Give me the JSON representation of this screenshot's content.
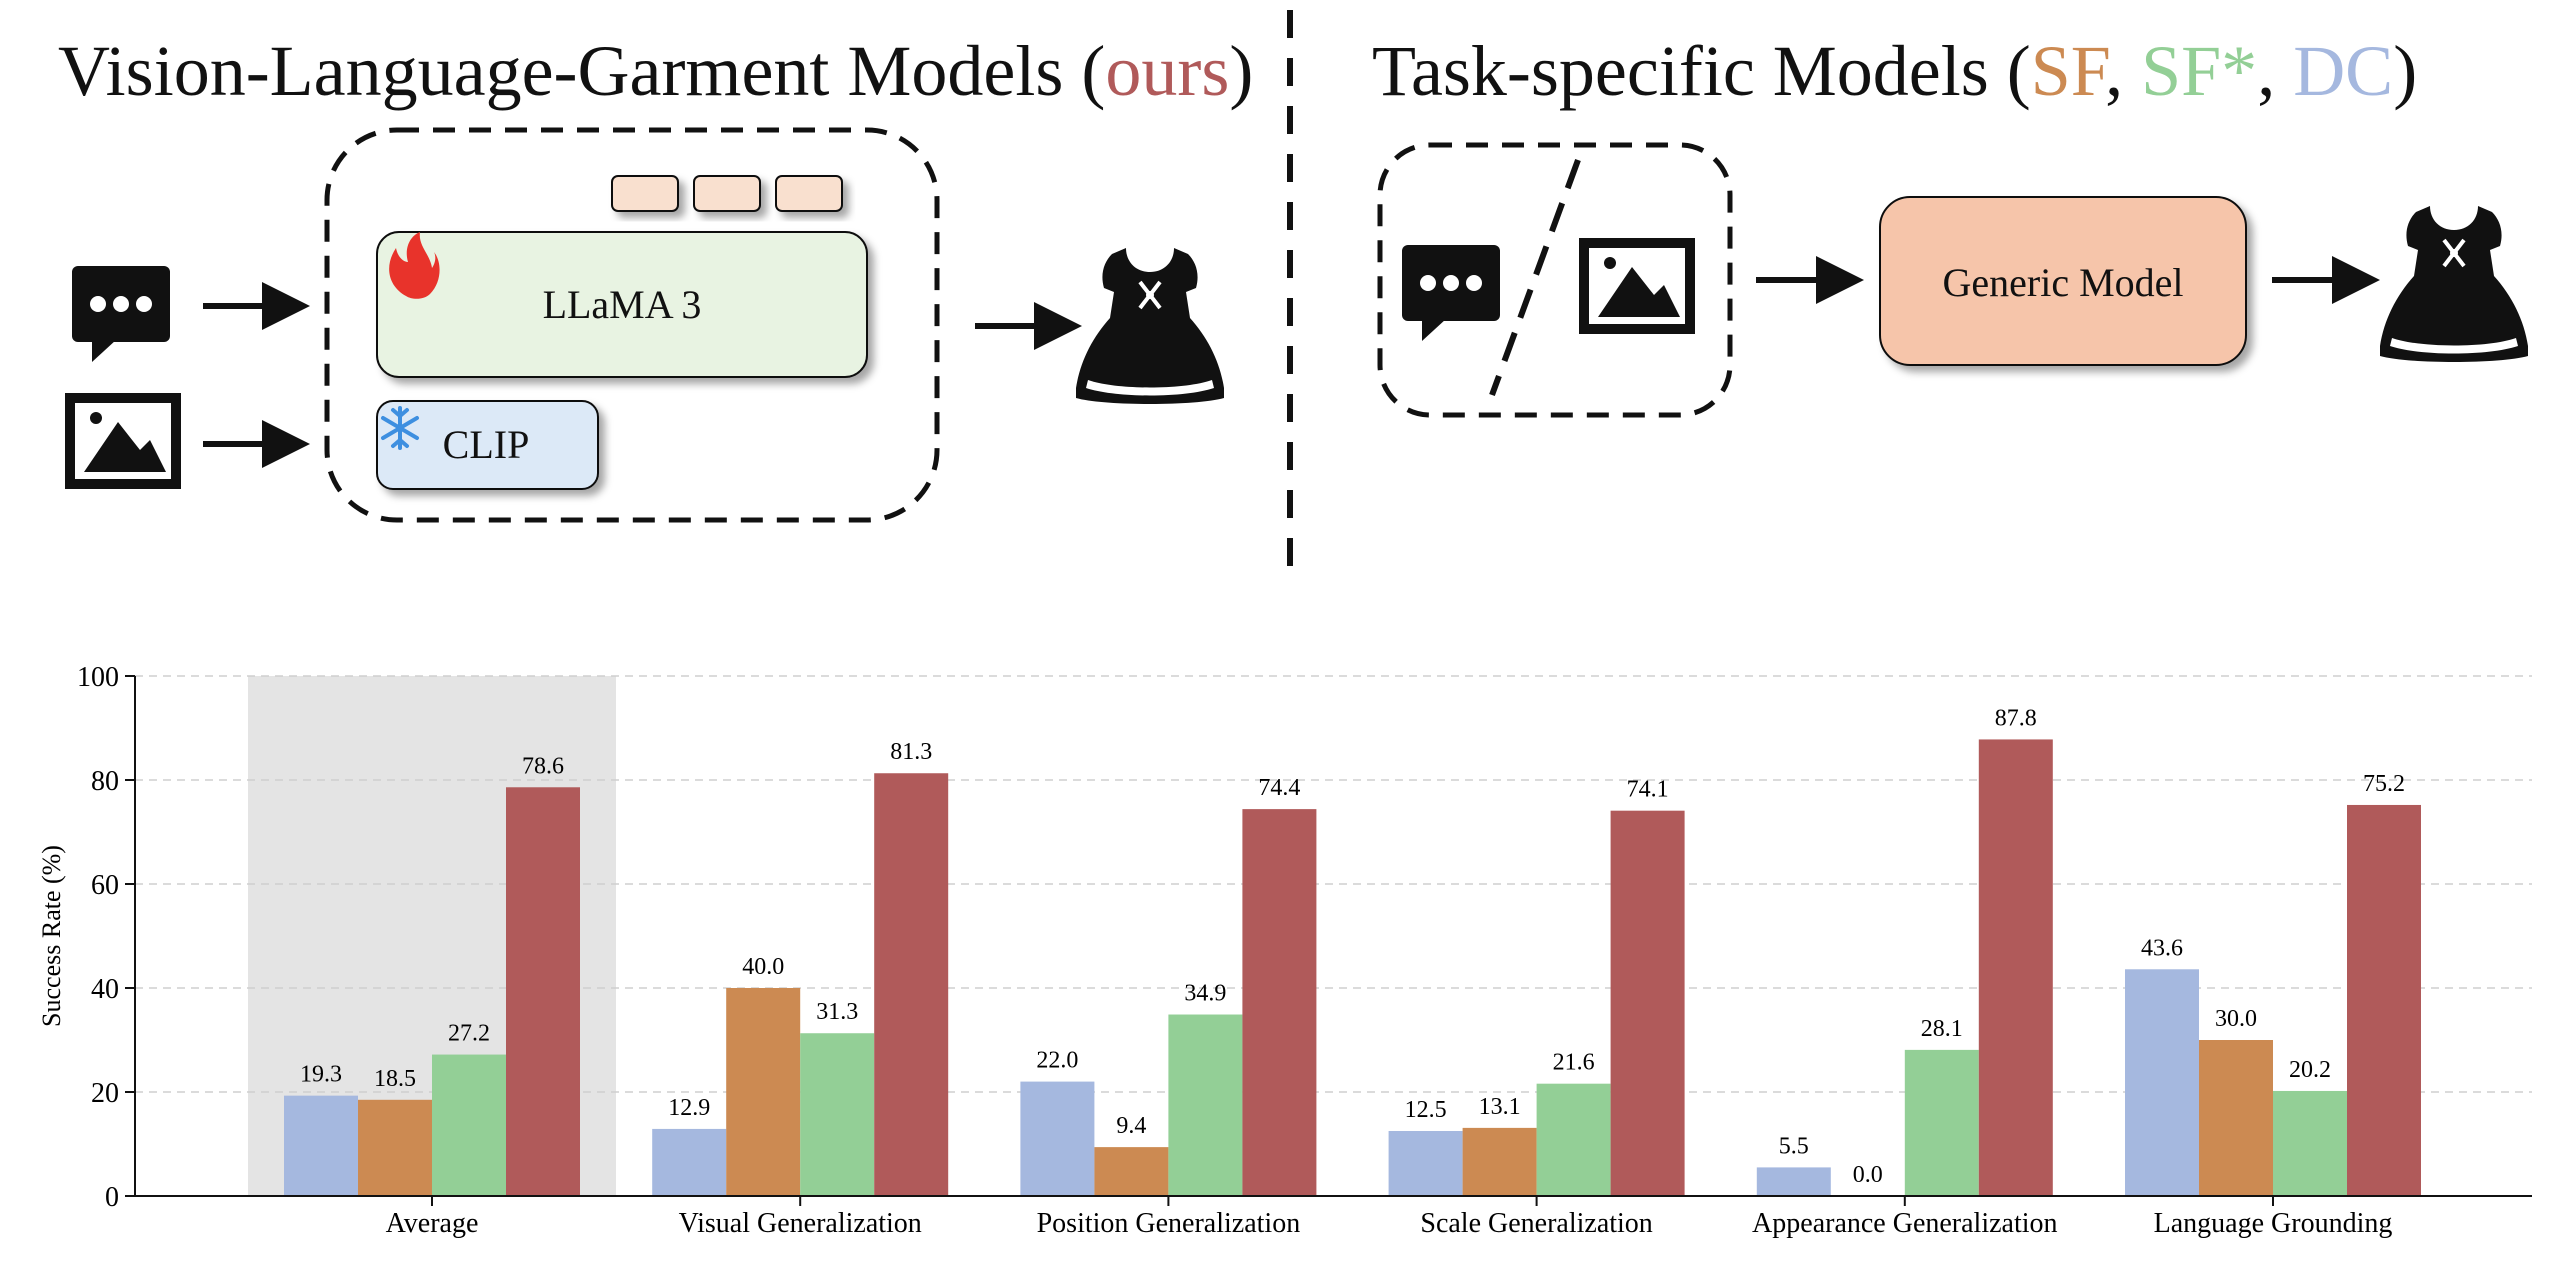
{
  "left_panel": {
    "heading": "Vision-Language-Garment Models (",
    "heading_highlight": "ours",
    "heading_close": ")",
    "llm_label": "LLaMA 3",
    "encoder_label": "CLIP"
  },
  "right_panel": {
    "heading_open": "Task-specific Models (",
    "sf": "SF",
    "sep1": ", ",
    "sfstar": "SF*",
    "sep2": ", ",
    "dc": "DC",
    "heading_close": ")",
    "model_label": "Generic Model"
  },
  "icons": [
    "chat-bubble-icon",
    "image-icon",
    "dress-icon",
    "flame-icon",
    "snowflake-icon",
    "arrow-icon"
  ],
  "colors": {
    "dc": "#a5b8df",
    "sf": "#cc8a52",
    "sfstar": "#93cf96",
    "ours": "#b05a5a",
    "llm_box": "#e8f3e2",
    "encoder_box": "#dce9f7",
    "generic_box": "#f6c5aa",
    "token": "#f9e0cf",
    "highlight_band": "#e4e4e4"
  },
  "chart_data": {
    "type": "bar",
    "ylabel": "Success Rate (%)",
    "xlabel": "",
    "ylim": [
      0,
      100
    ],
    "yticks": [
      0,
      20,
      40,
      60,
      80,
      100
    ],
    "grid": true,
    "highlighted_category": "Average",
    "categories": [
      "Average",
      "Visual Generalization",
      "Position Generalization",
      "Scale Generalization",
      "Appearance Generalization",
      "Language Grounding"
    ],
    "series": [
      {
        "key": "dc",
        "values": [
          19.3,
          12.9,
          22.0,
          12.5,
          5.5,
          43.6
        ]
      },
      {
        "key": "sf",
        "values": [
          18.5,
          40.0,
          9.4,
          13.1,
          0.0,
          30.0
        ]
      },
      {
        "key": "sfstar",
        "values": [
          27.2,
          31.3,
          34.9,
          21.6,
          28.1,
          20.2
        ]
      },
      {
        "key": "ours",
        "values": [
          78.6,
          81.3,
          74.4,
          74.1,
          87.8,
          75.2
        ]
      }
    ]
  }
}
